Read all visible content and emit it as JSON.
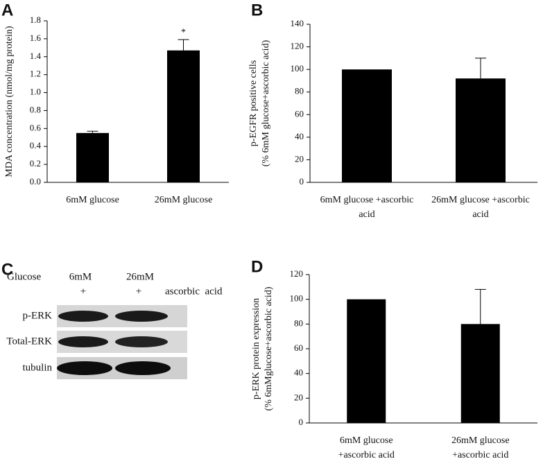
{
  "chart_data": [
    {
      "type": "bar",
      "panel_label": "A",
      "y_label": [
        "MDA concentration (nmol/mg protein)"
      ],
      "categories": [
        [
          "6mM glucose"
        ],
        [
          "26mM glucose"
        ]
      ],
      "values": [
        0.55,
        1.47
      ],
      "errors": [
        0.02,
        0.12
      ],
      "significance": [
        null,
        "*"
      ],
      "color": "#000000",
      "ylim": [
        0,
        1.8
      ],
      "yticks": [
        {
          "value": 0,
          "label": "0.0"
        },
        0.2,
        0.4,
        0.6,
        0.8,
        {
          "value": 1,
          "label": "1.0"
        },
        1.2,
        1.4,
        1.6,
        1.8
      ]
    },
    {
      "type": "bar",
      "panel_label": "B",
      "y_label": [
        "p-EGFR positive cells",
        "(% 6mM glucose+ascorbic acid)"
      ],
      "categories": [
        [
          "6mM glucose +ascorbic",
          "acid"
        ],
        [
          "26mM glucose +ascorbic",
          "acid"
        ]
      ],
      "values": [
        100,
        92
      ],
      "errors": [
        0,
        18
      ],
      "color": "#000000",
      "ylim": [
        0,
        140
      ],
      "yticks": [
        0,
        20,
        40,
        60,
        80,
        100,
        120,
        140
      ]
    },
    {
      "type": "bar",
      "panel_label": "D",
      "y_label": [
        "p-ERK protein expression",
        "(% 6mMglucose+ascorbic acid)"
      ],
      "categories": [
        [
          "6mM glucose",
          "+ascorbic acid"
        ],
        [
          "26mM glucose",
          "+ascorbic acid"
        ]
      ],
      "values": [
        100,
        80
      ],
      "errors": [
        0,
        28
      ],
      "color": "#000000",
      "ylim": [
        0,
        120
      ],
      "yticks": [
        0,
        20,
        40,
        60,
        80,
        100,
        120
      ]
    }
  ],
  "blot": {
    "panel_label": "C",
    "row_header": "Glucose",
    "conditions": [
      "6mM",
      "26mM"
    ],
    "treatment_marks": [
      "+",
      "+"
    ],
    "treatment_label": "ascorbic  acid",
    "rows": [
      "p-ERK",
      "Total-ERK",
      "tubulin"
    ]
  }
}
